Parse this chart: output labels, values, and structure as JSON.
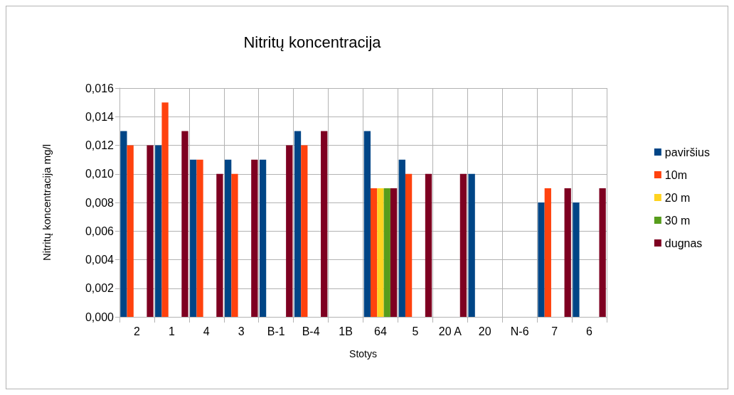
{
  "chart_data": {
    "type": "bar",
    "title": "Nitritų koncentracija",
    "xlabel": "Stotys",
    "ylabel": "Nitritų koncentracija mg/l",
    "categories": [
      "2",
      "1",
      "4",
      "3",
      "B-1",
      "B-4",
      "1B",
      "64",
      "5",
      "20 A",
      "20",
      "N-6",
      "7",
      "6"
    ],
    "series": [
      {
        "name": "paviršius",
        "color": "#004586",
        "values": [
          0.013,
          0.012,
          0.011,
          0.011,
          0.011,
          0.013,
          null,
          0.013,
          0.011,
          null,
          0.01,
          null,
          0.008,
          0.008
        ]
      },
      {
        "name": "10m",
        "color": "#ff420e",
        "values": [
          0.012,
          0.015,
          0.011,
          0.01,
          null,
          0.012,
          null,
          0.009,
          0.01,
          null,
          null,
          null,
          0.009,
          null
        ]
      },
      {
        "name": "20 m",
        "color": "#ffd320",
        "values": [
          null,
          null,
          null,
          null,
          null,
          null,
          null,
          0.009,
          null,
          null,
          null,
          null,
          null,
          null
        ]
      },
      {
        "name": "30 m",
        "color": "#579d1c",
        "values": [
          null,
          null,
          null,
          null,
          null,
          null,
          null,
          0.009,
          null,
          null,
          null,
          null,
          null,
          null
        ]
      },
      {
        "name": "dugnas",
        "color": "#7e0021",
        "values": [
          0.012,
          0.013,
          0.01,
          0.011,
          0.012,
          0.013,
          null,
          0.009,
          0.01,
          0.01,
          null,
          null,
          0.009,
          0.009
        ]
      }
    ],
    "ylim": [
      0,
      0.016
    ],
    "yticks": [
      {
        "value": 0,
        "label": "0,000"
      },
      {
        "value": 0.002,
        "label": "0,002"
      },
      {
        "value": 0.004,
        "label": "0,004"
      },
      {
        "value": 0.006,
        "label": "0,006"
      },
      {
        "value": 0.008,
        "label": "0,008"
      },
      {
        "value": 0.01,
        "label": "0,010"
      },
      {
        "value": 0.012,
        "label": "0,012"
      },
      {
        "value": 0.014,
        "label": "0,014"
      },
      {
        "value": 0.016,
        "label": "0,016"
      }
    ],
    "grid": true,
    "legend": "right"
  }
}
